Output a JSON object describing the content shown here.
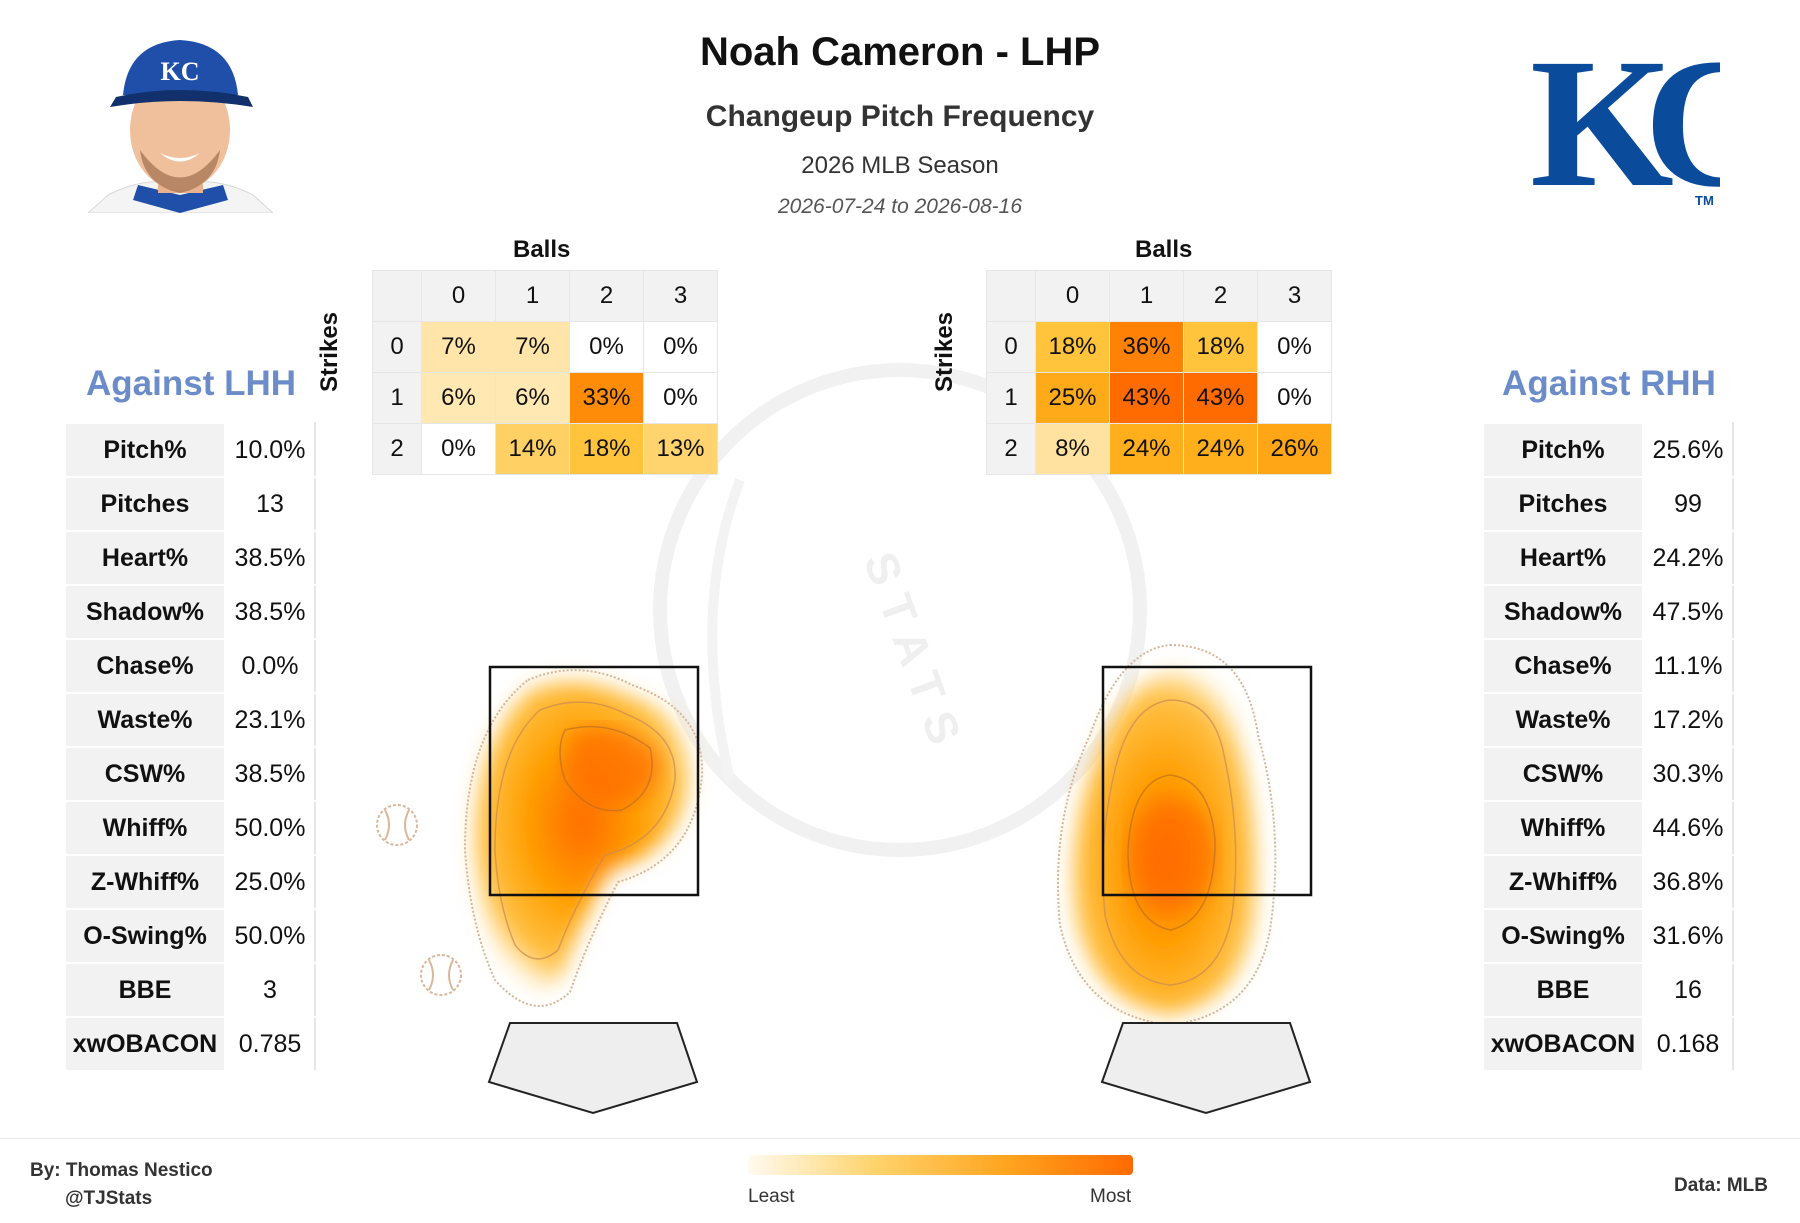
{
  "header": {
    "title": "Noah Cameron - LHP",
    "subtitle": "Changeup Pitch Frequency",
    "season": "2026 MLB Season",
    "date_range": "2026-07-24 to 2026-08-16"
  },
  "team_logo": {
    "text": "KC",
    "trademark": "TM",
    "color": "#0a4b9c"
  },
  "watermark_text": "STATS",
  "chart_data": [
    {
      "type": "table",
      "side": "Against LHH",
      "stats": [
        {
          "label": "Pitch%",
          "value": "10.0%"
        },
        {
          "label": "Pitches",
          "value": "13"
        },
        {
          "label": "Heart%",
          "value": "38.5%"
        },
        {
          "label": "Shadow%",
          "value": "38.5%"
        },
        {
          "label": "Chase%",
          "value": "0.0%"
        },
        {
          "label": "Waste%",
          "value": "23.1%"
        },
        {
          "label": "CSW%",
          "value": "38.5%"
        },
        {
          "label": "Whiff%",
          "value": "50.0%"
        },
        {
          "label": "Z-Whiff%",
          "value": "25.0%"
        },
        {
          "label": "O-Swing%",
          "value": "50.0%"
        },
        {
          "label": "BBE",
          "value": "3"
        },
        {
          "label": "xwOBACON",
          "value": "0.785"
        }
      ]
    },
    {
      "type": "heatmap",
      "side": "Against LHH",
      "xlabel": "Balls",
      "ylabel": "Strikes",
      "balls": [
        "0",
        "1",
        "2",
        "3"
      ],
      "strikes": [
        "0",
        "1",
        "2"
      ],
      "values": [
        [
          7,
          7,
          0,
          0
        ],
        [
          6,
          6,
          33,
          0
        ],
        [
          0,
          14,
          18,
          13
        ]
      ]
    },
    {
      "type": "heatmap",
      "side": "Against RHH",
      "xlabel": "Balls",
      "ylabel": "Strikes",
      "balls": [
        "0",
        "1",
        "2",
        "3"
      ],
      "strikes": [
        "0",
        "1",
        "2"
      ],
      "values": [
        [
          18,
          36,
          18,
          0
        ],
        [
          25,
          43,
          43,
          0
        ],
        [
          8,
          24,
          24,
          26
        ]
      ]
    },
    {
      "type": "table",
      "side": "Against RHH",
      "stats": [
        {
          "label": "Pitch%",
          "value": "25.6%"
        },
        {
          "label": "Pitches",
          "value": "99"
        },
        {
          "label": "Heart%",
          "value": "24.2%"
        },
        {
          "label": "Shadow%",
          "value": "47.5%"
        },
        {
          "label": "Chase%",
          "value": "11.1%"
        },
        {
          "label": "Waste%",
          "value": "17.2%"
        },
        {
          "label": "CSW%",
          "value": "30.3%"
        },
        {
          "label": "Whiff%",
          "value": "44.6%"
        },
        {
          "label": "Z-Whiff%",
          "value": "36.8%"
        },
        {
          "label": "O-Swing%",
          "value": "31.6%"
        },
        {
          "label": "BBE",
          "value": "16"
        },
        {
          "label": "xwOBACON",
          "value": "0.168"
        }
      ]
    }
  ],
  "footer": {
    "by": "By: Thomas Nestico",
    "handle": "@TJStats",
    "data_source": "Data: MLB",
    "legend_least": "Least",
    "legend_most": "Most"
  },
  "colors": {
    "side_title": "#6b8cc9",
    "heat_low": "#fff3d6",
    "heat_mid": "#ffb000",
    "heat_high": "#ff6a00",
    "zone_border": "#111111",
    "plate_fill": "#eeeeee"
  }
}
